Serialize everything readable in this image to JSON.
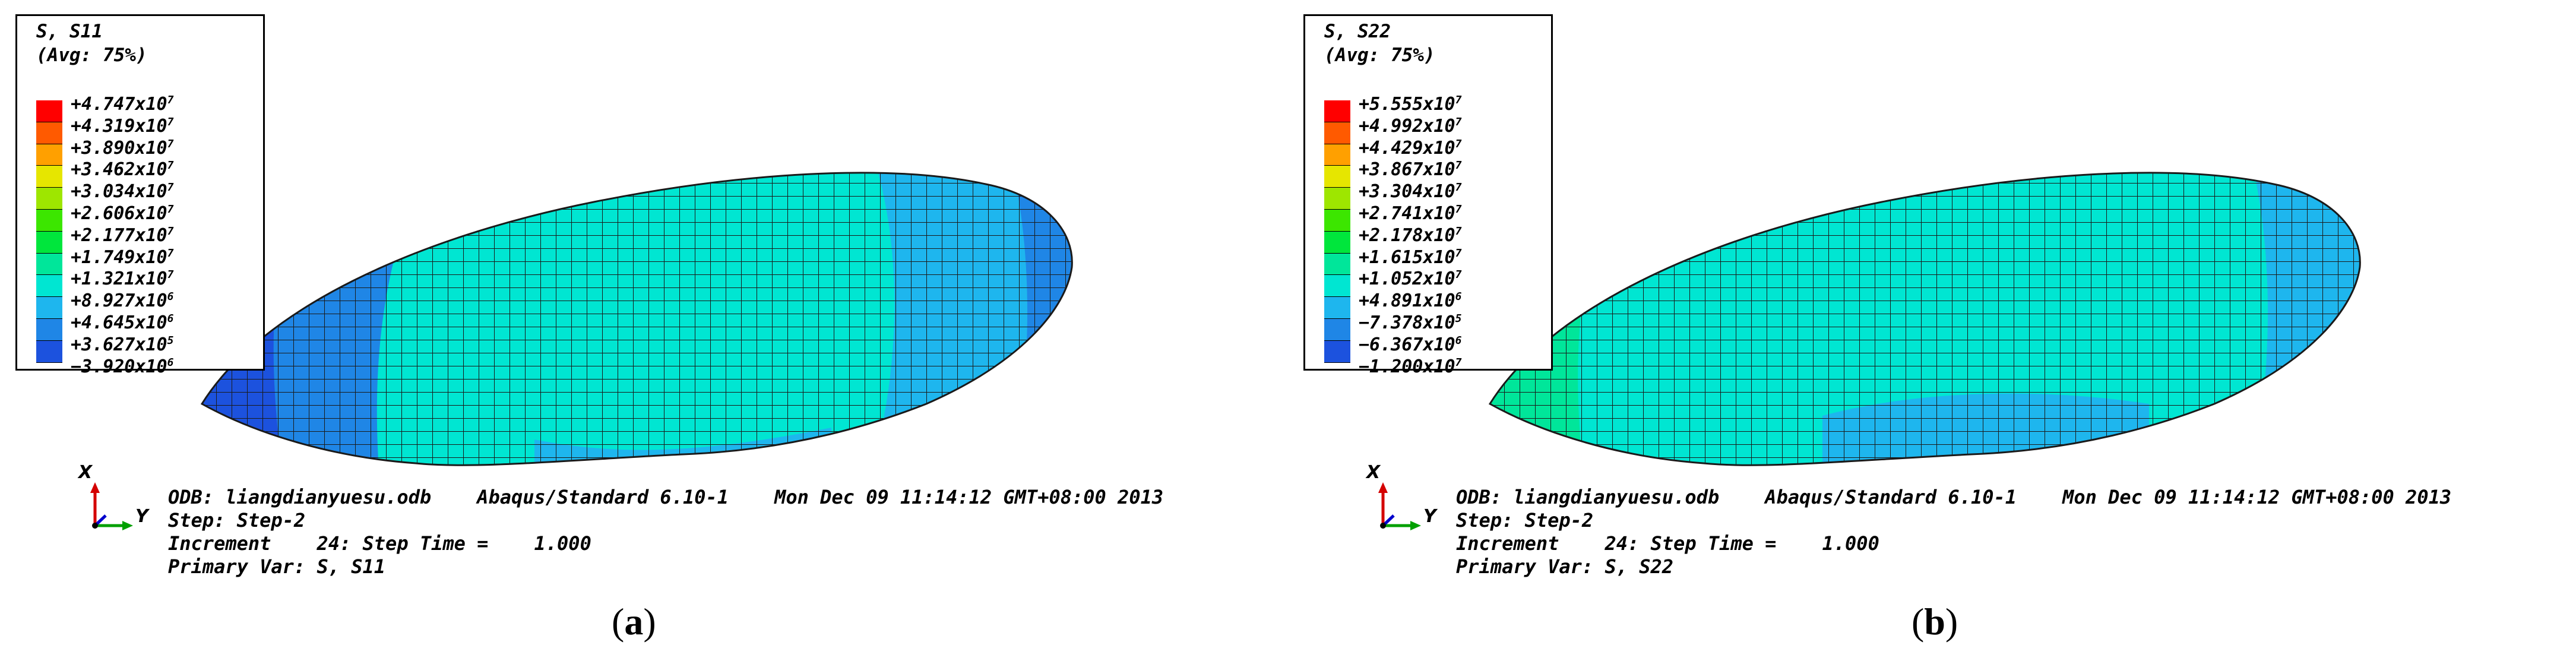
{
  "colors": {
    "contour": [
      "#ff0000",
      "#ff5a00",
      "#ffa000",
      "#e6e600",
      "#9ee600",
      "#3ce600",
      "#00e63c",
      "#00e69a",
      "#00e6d2",
      "#1eb6ee",
      "#1f86e6",
      "#1c52de",
      "#0000ff"
    ],
    "mesh_line": "#1a1a1a"
  },
  "panels": [
    {
      "legend_title_1": "S, S11",
      "legend_title_2": "(Avg: 75%)",
      "legend_values": [
        {
          "mantissa": "+4.747x10",
          "exp": "7"
        },
        {
          "mantissa": "+4.319x10",
          "exp": "7"
        },
        {
          "mantissa": "+3.890x10",
          "exp": "7"
        },
        {
          "mantissa": "+3.462x10",
          "exp": "7"
        },
        {
          "mantissa": "+3.034x10",
          "exp": "7"
        },
        {
          "mantissa": "+2.606x10",
          "exp": "7"
        },
        {
          "mantissa": "+2.177x10",
          "exp": "7"
        },
        {
          "mantissa": "+1.749x10",
          "exp": "7"
        },
        {
          "mantissa": "+1.321x10",
          "exp": "7"
        },
        {
          "mantissa": "+8.927x10",
          "exp": "6"
        },
        {
          "mantissa": "+4.645x10",
          "exp": "6"
        },
        {
          "mantissa": "+3.627x10",
          "exp": "5"
        },
        {
          "mantissa": "−3.920x10",
          "exp": "6"
        }
      ],
      "triad_x": "X",
      "triad_y": "Y",
      "info_text": "ODB: liangdianyuesu.odb    Abaqus/Standard 6.10-1    Mon Dec 09 11:14:12 GMT+08:00 2013\nStep: Step-2\nIncrement    24: Step Time =    1.000\nPrimary Var: S, S11",
      "caption_open": "(",
      "caption_letter": "a",
      "caption_close": ")"
    },
    {
      "legend_title_1": "S, S22",
      "legend_title_2": "(Avg: 75%)",
      "legend_values": [
        {
          "mantissa": "+5.555x10",
          "exp": "7"
        },
        {
          "mantissa": "+4.992x10",
          "exp": "7"
        },
        {
          "mantissa": "+4.429x10",
          "exp": "7"
        },
        {
          "mantissa": "+3.867x10",
          "exp": "7"
        },
        {
          "mantissa": "+3.304x10",
          "exp": "7"
        },
        {
          "mantissa": "+2.741x10",
          "exp": "7"
        },
        {
          "mantissa": "+2.178x10",
          "exp": "7"
        },
        {
          "mantissa": "+1.615x10",
          "exp": "7"
        },
        {
          "mantissa": "+1.052x10",
          "exp": "7"
        },
        {
          "mantissa": "+4.891x10",
          "exp": "6"
        },
        {
          "mantissa": "−7.378x10",
          "exp": "5"
        },
        {
          "mantissa": "−6.367x10",
          "exp": "6"
        },
        {
          "mantissa": "−1.200x10",
          "exp": "7"
        }
      ],
      "triad_x": "X",
      "triad_y": "Y",
      "info_text": "ODB: liangdianyuesu.odb    Abaqus/Standard 6.10-1    Mon Dec 09 11:14:12 GMT+08:00 2013\nStep: Step-2\nIncrement    24: Step Time =    1.000\nPrimary Var: S, S22",
      "caption_open": "(",
      "caption_letter": "b",
      "caption_close": ")"
    }
  ]
}
